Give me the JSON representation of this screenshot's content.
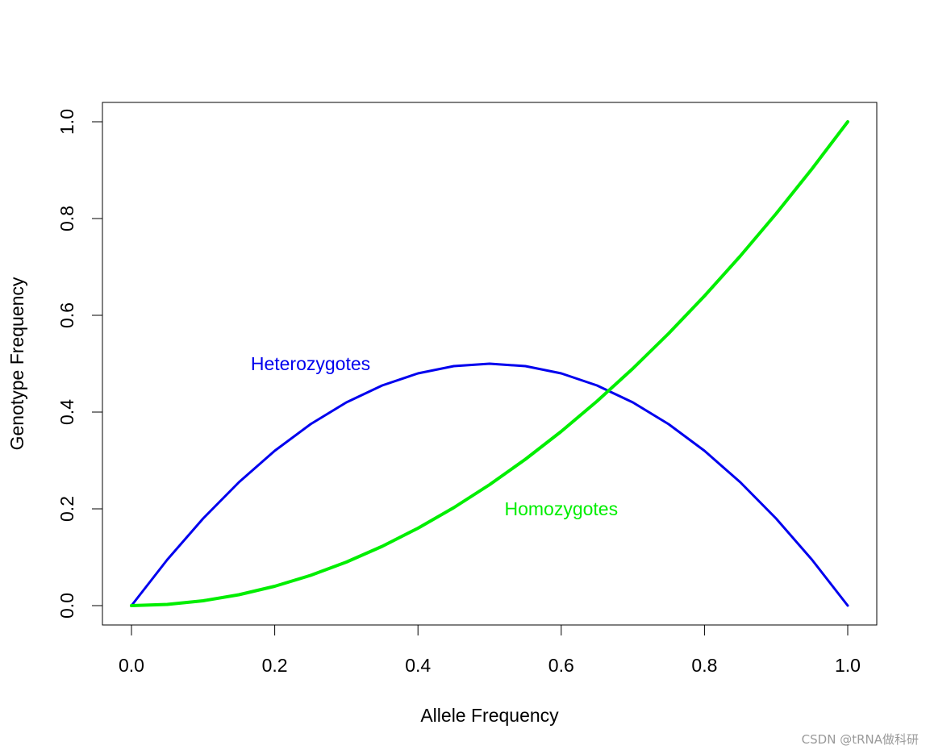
{
  "chart_data": {
    "type": "line",
    "title": "",
    "xlabel": "Allele Frequency",
    "ylabel": "Genotype Frequency",
    "xlim": [
      0,
      1
    ],
    "ylim": [
      0,
      1
    ],
    "x_ticks": [
      "0.0",
      "0.2",
      "0.4",
      "0.6",
      "0.8",
      "1.0"
    ],
    "y_ticks": [
      "0.0",
      "0.2",
      "0.4",
      "0.6",
      "0.8",
      "1.0"
    ],
    "grid": false,
    "legend": "none",
    "series": [
      {
        "name": "Heterozygotes",
        "color": "#0000ee",
        "x": [
          0,
          0.05,
          0.1,
          0.15,
          0.2,
          0.25,
          0.3,
          0.35,
          0.4,
          0.45,
          0.5,
          0.55,
          0.6,
          0.65,
          0.7,
          0.75,
          0.8,
          0.85,
          0.9,
          0.95,
          1
        ],
        "y": [
          0,
          0.095,
          0.18,
          0.255,
          0.32,
          0.375,
          0.42,
          0.455,
          0.48,
          0.495,
          0.5,
          0.495,
          0.48,
          0.455,
          0.42,
          0.375,
          0.32,
          0.255,
          0.18,
          0.095,
          0
        ],
        "label_x": 0.25,
        "label_y": 0.5
      },
      {
        "name": "Homozygotes",
        "color": "#00ee00",
        "x": [
          0,
          0.05,
          0.1,
          0.15,
          0.2,
          0.25,
          0.3,
          0.35,
          0.4,
          0.45,
          0.5,
          0.55,
          0.6,
          0.65,
          0.7,
          0.75,
          0.8,
          0.85,
          0.9,
          0.95,
          1
        ],
        "y": [
          0,
          0.0025,
          0.01,
          0.0225,
          0.04,
          0.0625,
          0.09,
          0.1225,
          0.16,
          0.2025,
          0.25,
          0.3025,
          0.36,
          0.4225,
          0.49,
          0.5625,
          0.64,
          0.7225,
          0.81,
          0.9025,
          1
        ],
        "label_x": 0.6,
        "label_y": 0.2
      }
    ]
  },
  "watermark": "CSDN @tRNA做科研"
}
